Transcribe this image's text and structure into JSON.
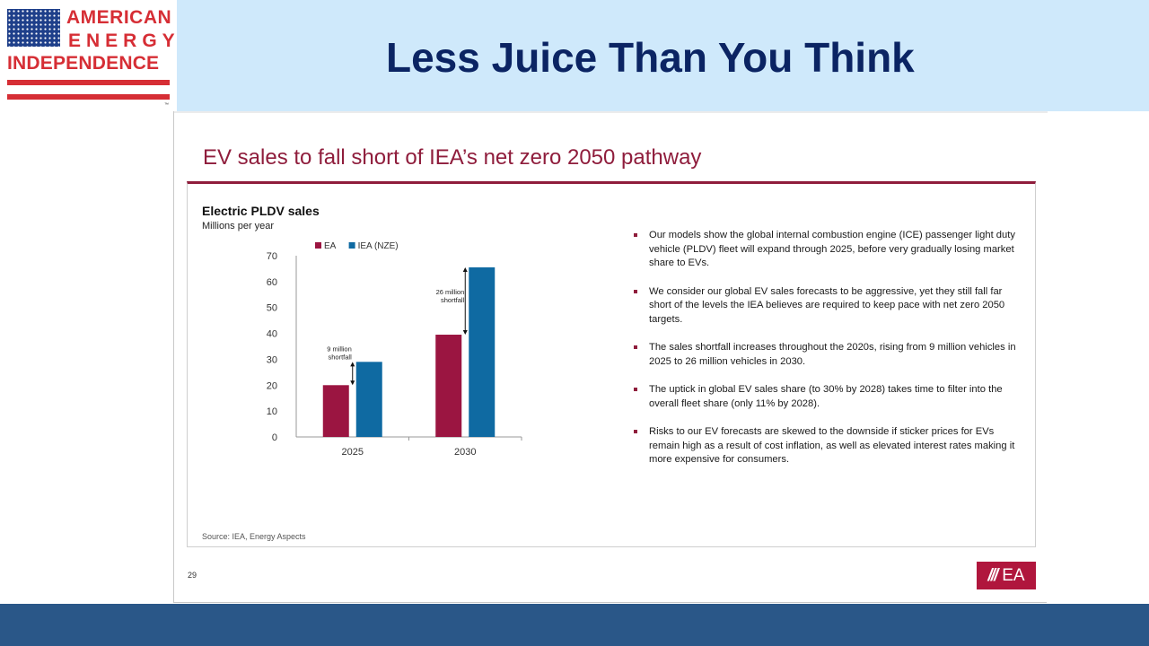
{
  "brand": {
    "line1": "AMERICAN",
    "line2": "ENERGY",
    "line3": "INDEPENDENCE",
    "trademark": "™",
    "colors": {
      "red": "#d62e35",
      "blue": "#1e3f8a"
    }
  },
  "page": {
    "title": "Less Juice Than You Think",
    "title_color": "#0b2463",
    "header_bg": "#cfe9fb",
    "footer_bg": "#2a5788"
  },
  "slide": {
    "heading": "EV sales to fall short of IEA’s net zero 2050 pathway",
    "number": "29",
    "badge_mark": "///",
    "badge_text": "EA",
    "source": "Source: IEA, Energy Aspects",
    "accent": "#8f1d3c",
    "bullets": [
      "Our models show the global internal combustion engine (ICE) passenger light duty vehicle (PLDV) fleet will expand through 2025, before very gradually losing market share to EVs.",
      "We consider our global EV sales forecasts to be aggressive, yet they still fall far short of the levels the IEA believes are required to keep pace with net zero 2050 targets.",
      "The sales shortfall increases throughout the 2020s, rising from 9 million vehicles in 2025 to 26 million vehicles in 2030.",
      "The uptick in global EV sales share (to 30% by 2028) takes time to filter into the overall fleet share (only 11% by 2028).",
      "Risks to our EV forecasts are skewed to the downside if sticker prices for EVs remain high as a result of cost inflation, as well as elevated interest rates making it more expensive for consumers."
    ]
  },
  "chart_data": {
    "type": "bar",
    "title": "Electric PLDV sales",
    "ylabel": "Millions per year",
    "categories": [
      "2025",
      "2030"
    ],
    "series": [
      {
        "name": "EA",
        "values": [
          20,
          39.5
        ],
        "color": "#9b1541"
      },
      {
        "name": "IEA (NZE)",
        "values": [
          29,
          65.5
        ],
        "color": "#0f6aa2"
      }
    ],
    "ylim": [
      0,
      70
    ],
    "yticks": [
      0,
      10,
      20,
      30,
      40,
      50,
      60,
      70
    ],
    "grid": false,
    "legend": "top-left",
    "annotations": [
      {
        "text": [
          "9 million",
          "shortfall"
        ],
        "category": "2025",
        "from": 20,
        "to": 29
      },
      {
        "text": [
          "26 million",
          "shortfall"
        ],
        "category": "2030",
        "from": 39.5,
        "to": 65.5
      }
    ]
  }
}
